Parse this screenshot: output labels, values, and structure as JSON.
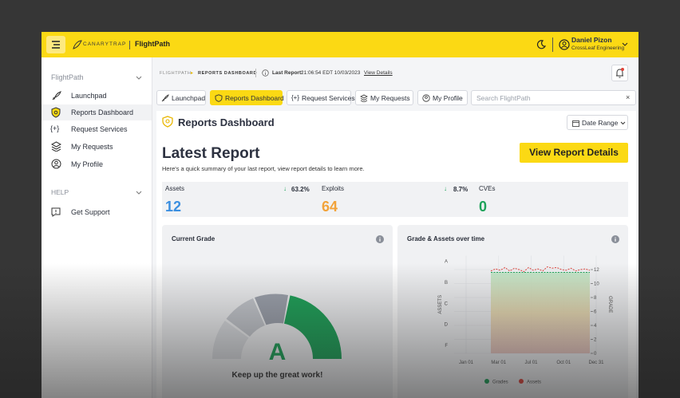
{
  "header": {
    "brand": "CANARYTRAP",
    "app": "FlightPath",
    "user_name": "Daniel Pizon",
    "user_org": "CrossLeaf Engineering"
  },
  "sidebar": {
    "section": "FlightPath",
    "items": [
      "Launchpad",
      "Reports Dashboard",
      "Request Services",
      "My Requests",
      "My Profile"
    ],
    "help_section": "HELP",
    "help_items": [
      "Get Support"
    ]
  },
  "breadcrumb": {
    "root": "FLIGHTPATH",
    "current": "REPORTS DASHBOARD",
    "last_report_label": "Last Report:",
    "last_report_time": "21:06:54 EDT 10/03/2023",
    "link": "View Details"
  },
  "tabs": [
    "Launchpad",
    "Reports Dashboard",
    "Request Services",
    "My Requests",
    "My Profile"
  ],
  "search_placeholder": "Search FlightPath",
  "page_title": "Reports Dashboard",
  "date_range": "Date Range",
  "latest": {
    "title": "Latest Report",
    "subtitle": "Here's a quick summary of your last report, view report details to learn more.",
    "button": "View Report Details"
  },
  "stats": [
    {
      "label": "Assets",
      "change": "63.2%",
      "value": "12"
    },
    {
      "label": "Exploits",
      "change": "8.7%",
      "value": "64"
    },
    {
      "label": "CVEs",
      "value": "0"
    }
  ],
  "grade_card": {
    "title": "Current Grade",
    "grade": "A",
    "message": "Keep up the great work!"
  },
  "chart_data": {
    "type": "line",
    "title": "Grade & Assets over time",
    "x_labels": [
      "Jan 01",
      "Mar 01",
      "Jul 01",
      "Oct 01",
      "Dec 31"
    ],
    "y_labels": [
      "A",
      "B",
      "C",
      "D",
      "F"
    ],
    "y_label": "ASSETS",
    "y2_label": "GRADE",
    "y2lim": [
      0,
      14
    ],
    "y2ticks": [
      0,
      2,
      4,
      6,
      8,
      10,
      12
    ],
    "series": [
      {
        "name": "Grades",
        "color": "#1fa35a",
        "axis": "y2",
        "values": [
          11.6,
          11.6,
          11.6,
          11.6,
          11.6,
          11.6,
          11.6,
          11.6,
          11.6,
          11.6,
          11.6,
          11.6,
          11.6,
          11.6,
          11.6,
          11.6,
          11.6,
          11.6,
          11.6,
          11.6,
          11.6,
          11.6
        ]
      },
      {
        "name": "Assets",
        "color": "#e0443c",
        "axis": "y2",
        "values": [
          11.8,
          12.1,
          11.9,
          12.3,
          11.8,
          12.2,
          12.0,
          11.7,
          12.3,
          11.9,
          12.1,
          11.8,
          12.4,
          12.2,
          12.3,
          12.0,
          11.9,
          12.2,
          11.8,
          12.0,
          12.1,
          11.9
        ]
      }
    ]
  }
}
